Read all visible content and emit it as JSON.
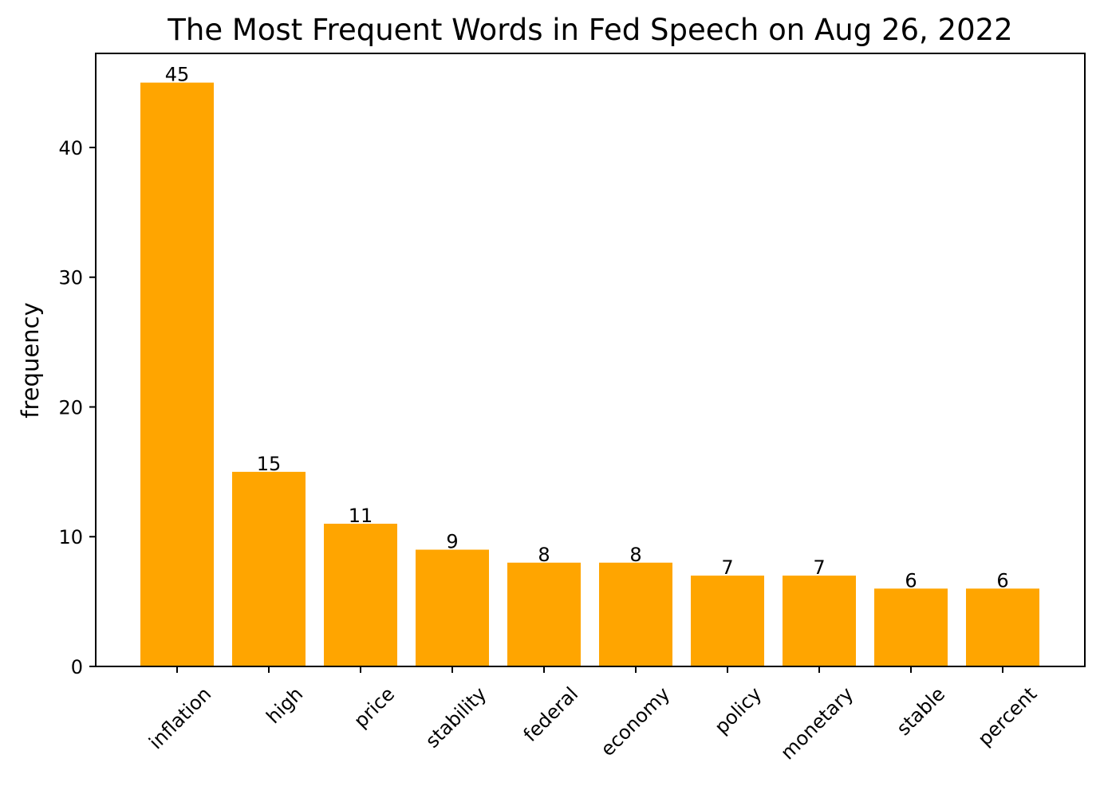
{
  "chart_data": {
    "type": "bar",
    "title": "The Most Frequent Words in Fed Speech on Aug 26, 2022",
    "xlabel": "",
    "ylabel": "frequency",
    "categories": [
      "inflation",
      "high",
      "price",
      "stability",
      "federal",
      "economy",
      "policy",
      "monetary",
      "stable",
      "percent"
    ],
    "values": [
      45,
      15,
      11,
      9,
      8,
      8,
      7,
      7,
      6,
      6
    ],
    "data_labels": [
      "45",
      "15",
      "11",
      "9",
      "8",
      "8",
      "7",
      "7",
      "6",
      "6"
    ],
    "yticks": [
      0,
      10,
      20,
      30,
      40
    ],
    "ytick_labels": [
      "0",
      "10",
      "20",
      "30",
      "40"
    ],
    "ylim": [
      0,
      47.25
    ],
    "grid": false,
    "legend": "none",
    "bar_color": "#FFA500",
    "x_tick_rotation_deg": -45
  }
}
